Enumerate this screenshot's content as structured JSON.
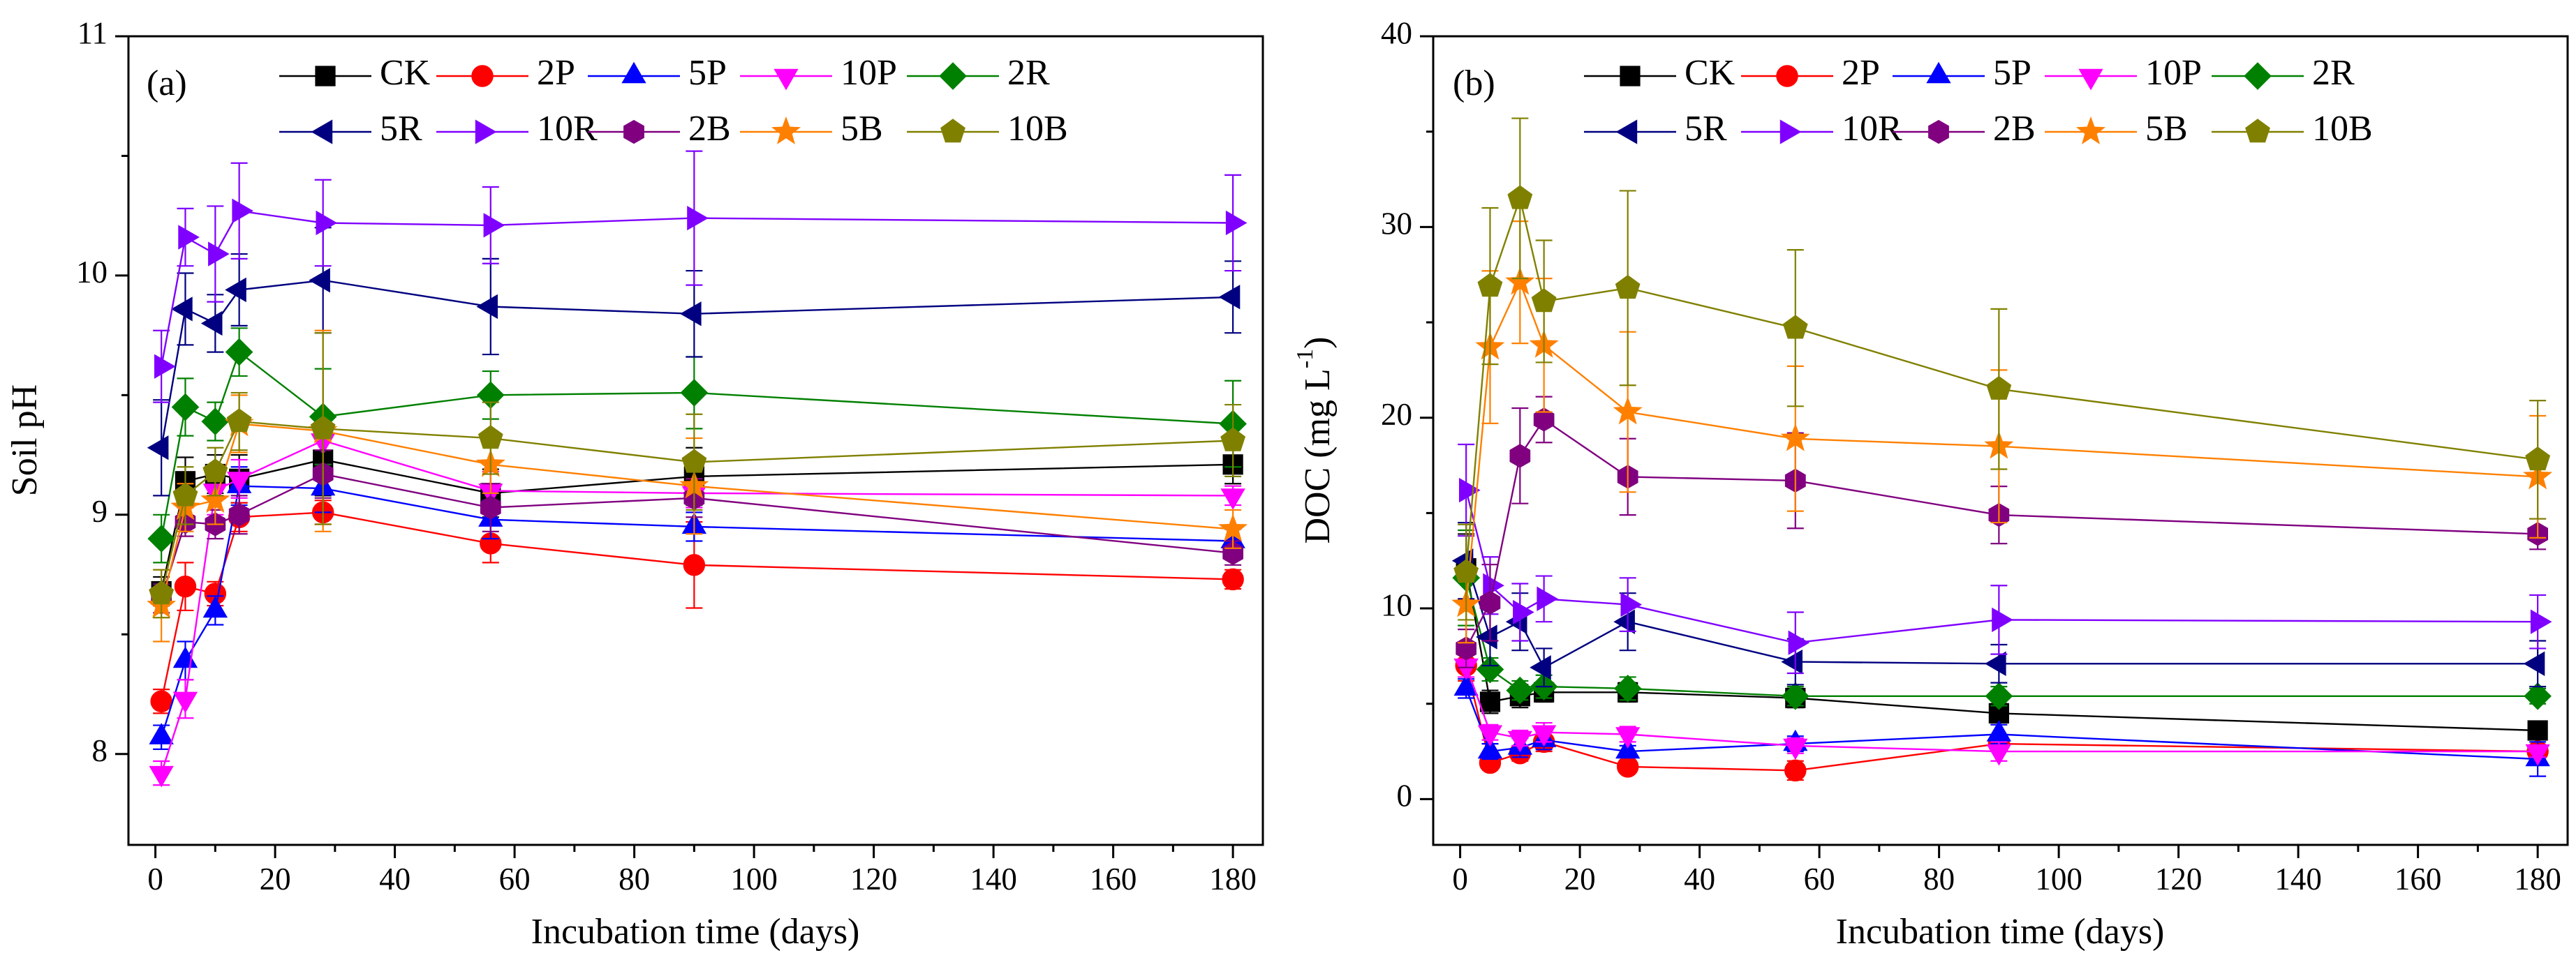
{
  "chart_data": [
    {
      "type": "line",
      "panel_label": "(a)",
      "xlabel": "Incubation time (days)",
      "ylabel": "Soil pH",
      "xlim": [
        -4.5,
        185
      ],
      "ylim": [
        7.62,
        11
      ],
      "xticks": [
        0,
        20,
        40,
        60,
        80,
        100,
        120,
        140,
        160,
        180
      ],
      "xtick_labels": [
        "0",
        "20",
        "40",
        "60",
        "80",
        "100",
        "120",
        "140",
        "160",
        "180"
      ],
      "yticks": [
        8,
        9,
        10,
        11
      ],
      "ytick_labels": [
        "8",
        "9",
        "10",
        "11"
      ],
      "grid": false,
      "legend": "top",
      "x": [
        1,
        5,
        10,
        14,
        28,
        56,
        90,
        180
      ],
      "series": [
        {
          "name": "CK",
          "color": "#000000",
          "marker": "square",
          "values": [
            8.68,
            9.14,
            9.17,
            9.15,
            9.23,
            9.09,
            9.16,
            9.21
          ],
          "errors": [
            0.06,
            0.1,
            0.08,
            0.1,
            0.15,
            0.1,
            0.12,
            0.08
          ]
        },
        {
          "name": "2P",
          "color": "#ff0000",
          "marker": "circle",
          "values": [
            8.22,
            8.7,
            8.67,
            8.99,
            9.01,
            8.88,
            8.79,
            8.73
          ],
          "errors": [
            0.05,
            0.1,
            0.05,
            0.06,
            0.05,
            0.08,
            0.18,
            0.04
          ]
        },
        {
          "name": "5P",
          "color": "#0000ff",
          "marker": "triangle-up",
          "values": [
            8.07,
            8.39,
            8.6,
            9.12,
            9.11,
            8.98,
            8.95,
            8.89
          ],
          "errors": [
            0.05,
            0.08,
            0.06,
            0.08,
            0.1,
            0.08,
            0.06,
            0.05
          ]
        },
        {
          "name": "10P",
          "color": "#ff00ff",
          "marker": "triangle-down",
          "values": [
            7.92,
            8.23,
            9.1,
            9.15,
            9.31,
            9.1,
            9.09,
            9.08
          ],
          "errors": [
            0.05,
            0.08,
            0.1,
            0.08,
            0.1,
            0.08,
            0.06,
            0.04
          ]
        },
        {
          "name": "2R",
          "color": "#008000",
          "marker": "diamond",
          "values": [
            8.9,
            9.45,
            9.39,
            9.68,
            9.41,
            9.5,
            9.51,
            9.38
          ],
          "errors": [
            0.1,
            0.12,
            0.08,
            0.1,
            0.2,
            0.1,
            0.15,
            0.18
          ]
        },
        {
          "name": "5R",
          "color": "#000080",
          "marker": "triangle-left",
          "values": [
            9.28,
            9.86,
            9.8,
            9.94,
            9.98,
            9.87,
            9.84,
            9.91
          ],
          "errors": [
            0.2,
            0.15,
            0.12,
            0.15,
            0.22,
            0.2,
            0.18,
            0.15
          ]
        },
        {
          "name": "10R",
          "color": "#7f00ff",
          "marker": "triangle-right",
          "values": [
            9.62,
            10.16,
            10.09,
            10.27,
            10.22,
            10.21,
            10.24,
            10.22
          ],
          "errors": [
            0.15,
            0.12,
            0.2,
            0.2,
            0.18,
            0.16,
            0.28,
            0.2
          ]
        },
        {
          "name": "2B",
          "color": "#800080",
          "marker": "hexagon",
          "values": [
            8.65,
            8.97,
            8.96,
            9.0,
            9.17,
            9.03,
            9.07,
            8.84
          ],
          "errors": [
            0.06,
            0.06,
            0.06,
            0.08,
            0.1,
            0.1,
            0.08,
            0.05
          ]
        },
        {
          "name": "5B",
          "color": "#ff8000",
          "marker": "star",
          "values": [
            8.62,
            9.03,
            9.06,
            9.38,
            9.35,
            9.21,
            9.12,
            8.94
          ],
          "errors": [
            0.15,
            0.1,
            0.1,
            0.12,
            0.42,
            0.12,
            0.2,
            0.08
          ]
        },
        {
          "name": "10B",
          "color": "#808000",
          "marker": "pentagon",
          "values": [
            8.67,
            9.08,
            9.18,
            9.39,
            9.36,
            9.32,
            9.22,
            9.31
          ],
          "errors": [
            0.1,
            0.12,
            0.1,
            0.12,
            0.4,
            0.15,
            0.2,
            0.15
          ]
        }
      ]
    },
    {
      "type": "line",
      "panel_label": "(b)",
      "xlabel": "Incubation time (days)",
      "ylabel": "DOC (mg L",
      "ylabel_superscript": "-1",
      "ylabel_suffix": ")",
      "xlim": [
        -4.5,
        185
      ],
      "ylim": [
        -2.4,
        40
      ],
      "xticks": [
        0,
        20,
        40,
        60,
        80,
        100,
        120,
        140,
        160,
        180
      ],
      "xtick_labels": [
        "0",
        "20",
        "40",
        "60",
        "80",
        "100",
        "120",
        "140",
        "160",
        "180"
      ],
      "yticks": [
        0,
        10,
        20,
        30,
        40
      ],
      "ytick_labels": [
        "0",
        "10",
        "20",
        "30",
        "40"
      ],
      "grid": false,
      "legend": "top",
      "x": [
        1,
        5,
        10,
        14,
        28,
        56,
        90,
        180
      ],
      "series": [
        {
          "name": "CK",
          "color": "#000000",
          "marker": "square",
          "values": [
            12.1,
            5.1,
            5.4,
            5.6,
            5.6,
            5.3,
            4.5,
            3.6
          ],
          "errors": [
            1.8,
            0.6,
            0.6,
            0.5,
            0.5,
            0.5,
            0.5,
            0.4
          ]
        },
        {
          "name": "2P",
          "color": "#ff0000",
          "marker": "circle",
          "values": [
            7.0,
            1.9,
            2.4,
            3.0,
            1.7,
            1.5,
            2.9,
            2.5
          ],
          "errors": [
            0.8,
            0.3,
            0.4,
            0.5,
            0.3,
            0.5,
            0.4,
            0.3
          ]
        },
        {
          "name": "5P",
          "color": "#0000ff",
          "marker": "triangle-up",
          "values": [
            5.8,
            2.5,
            2.7,
            3.1,
            2.5,
            2.9,
            3.4,
            2.1
          ],
          "errors": [
            0.5,
            0.4,
            0.5,
            0.5,
            0.3,
            0.4,
            0.5,
            0.9
          ]
        },
        {
          "name": "10P",
          "color": "#ff00ff",
          "marker": "triangle-down",
          "values": [
            7.0,
            3.5,
            3.2,
            3.5,
            3.4,
            2.8,
            2.5,
            2.5
          ],
          "errors": [
            0.6,
            0.4,
            0.4,
            0.5,
            0.4,
            0.4,
            0.5,
            0.3
          ]
        },
        {
          "name": "2R",
          "color": "#008000",
          "marker": "diamond",
          "values": [
            11.6,
            6.8,
            5.7,
            5.9,
            5.8,
            5.4,
            5.4,
            5.4
          ],
          "errors": [
            2.5,
            0.6,
            0.5,
            0.6,
            0.6,
            0.5,
            0.5,
            0.4
          ]
        },
        {
          "name": "5R",
          "color": "#000080",
          "marker": "triangle-left",
          "values": [
            12.5,
            8.5,
            9.3,
            6.9,
            9.3,
            7.2,
            7.1,
            7.1
          ],
          "errors": [
            2.0,
            1.5,
            1.5,
            1.0,
            1.5,
            1.2,
            1.0,
            1.2
          ]
        },
        {
          "name": "10R",
          "color": "#7f00ff",
          "marker": "triangle-right",
          "values": [
            16.2,
            11.2,
            9.8,
            10.5,
            10.2,
            8.2,
            9.4,
            9.3
          ],
          "errors": [
            2.4,
            1.5,
            1.5,
            1.2,
            1.4,
            1.6,
            1.8,
            1.4
          ]
        },
        {
          "name": "2B",
          "color": "#800080",
          "marker": "hexagon",
          "values": [
            7.9,
            10.3,
            18.0,
            19.9,
            16.9,
            16.7,
            14.9,
            13.9
          ],
          "errors": [
            1.0,
            2.0,
            2.5,
            1.2,
            2.0,
            2.5,
            1.5,
            0.8
          ]
        },
        {
          "name": "5B",
          "color": "#ff8000",
          "marker": "star",
          "values": [
            10.2,
            23.7,
            27.1,
            23.8,
            20.3,
            18.9,
            18.5,
            16.9
          ],
          "errors": [
            2.0,
            4.0,
            3.2,
            3.5,
            4.2,
            3.8,
            4.0,
            3.2
          ]
        },
        {
          "name": "10B",
          "color": "#808000",
          "marker": "pentagon",
          "values": [
            11.9,
            26.9,
            31.5,
            26.1,
            26.8,
            24.7,
            21.5,
            17.8
          ],
          "errors": [
            2.5,
            4.1,
            4.2,
            3.2,
            5.1,
            4.1,
            4.2,
            3.1
          ]
        }
      ]
    }
  ]
}
